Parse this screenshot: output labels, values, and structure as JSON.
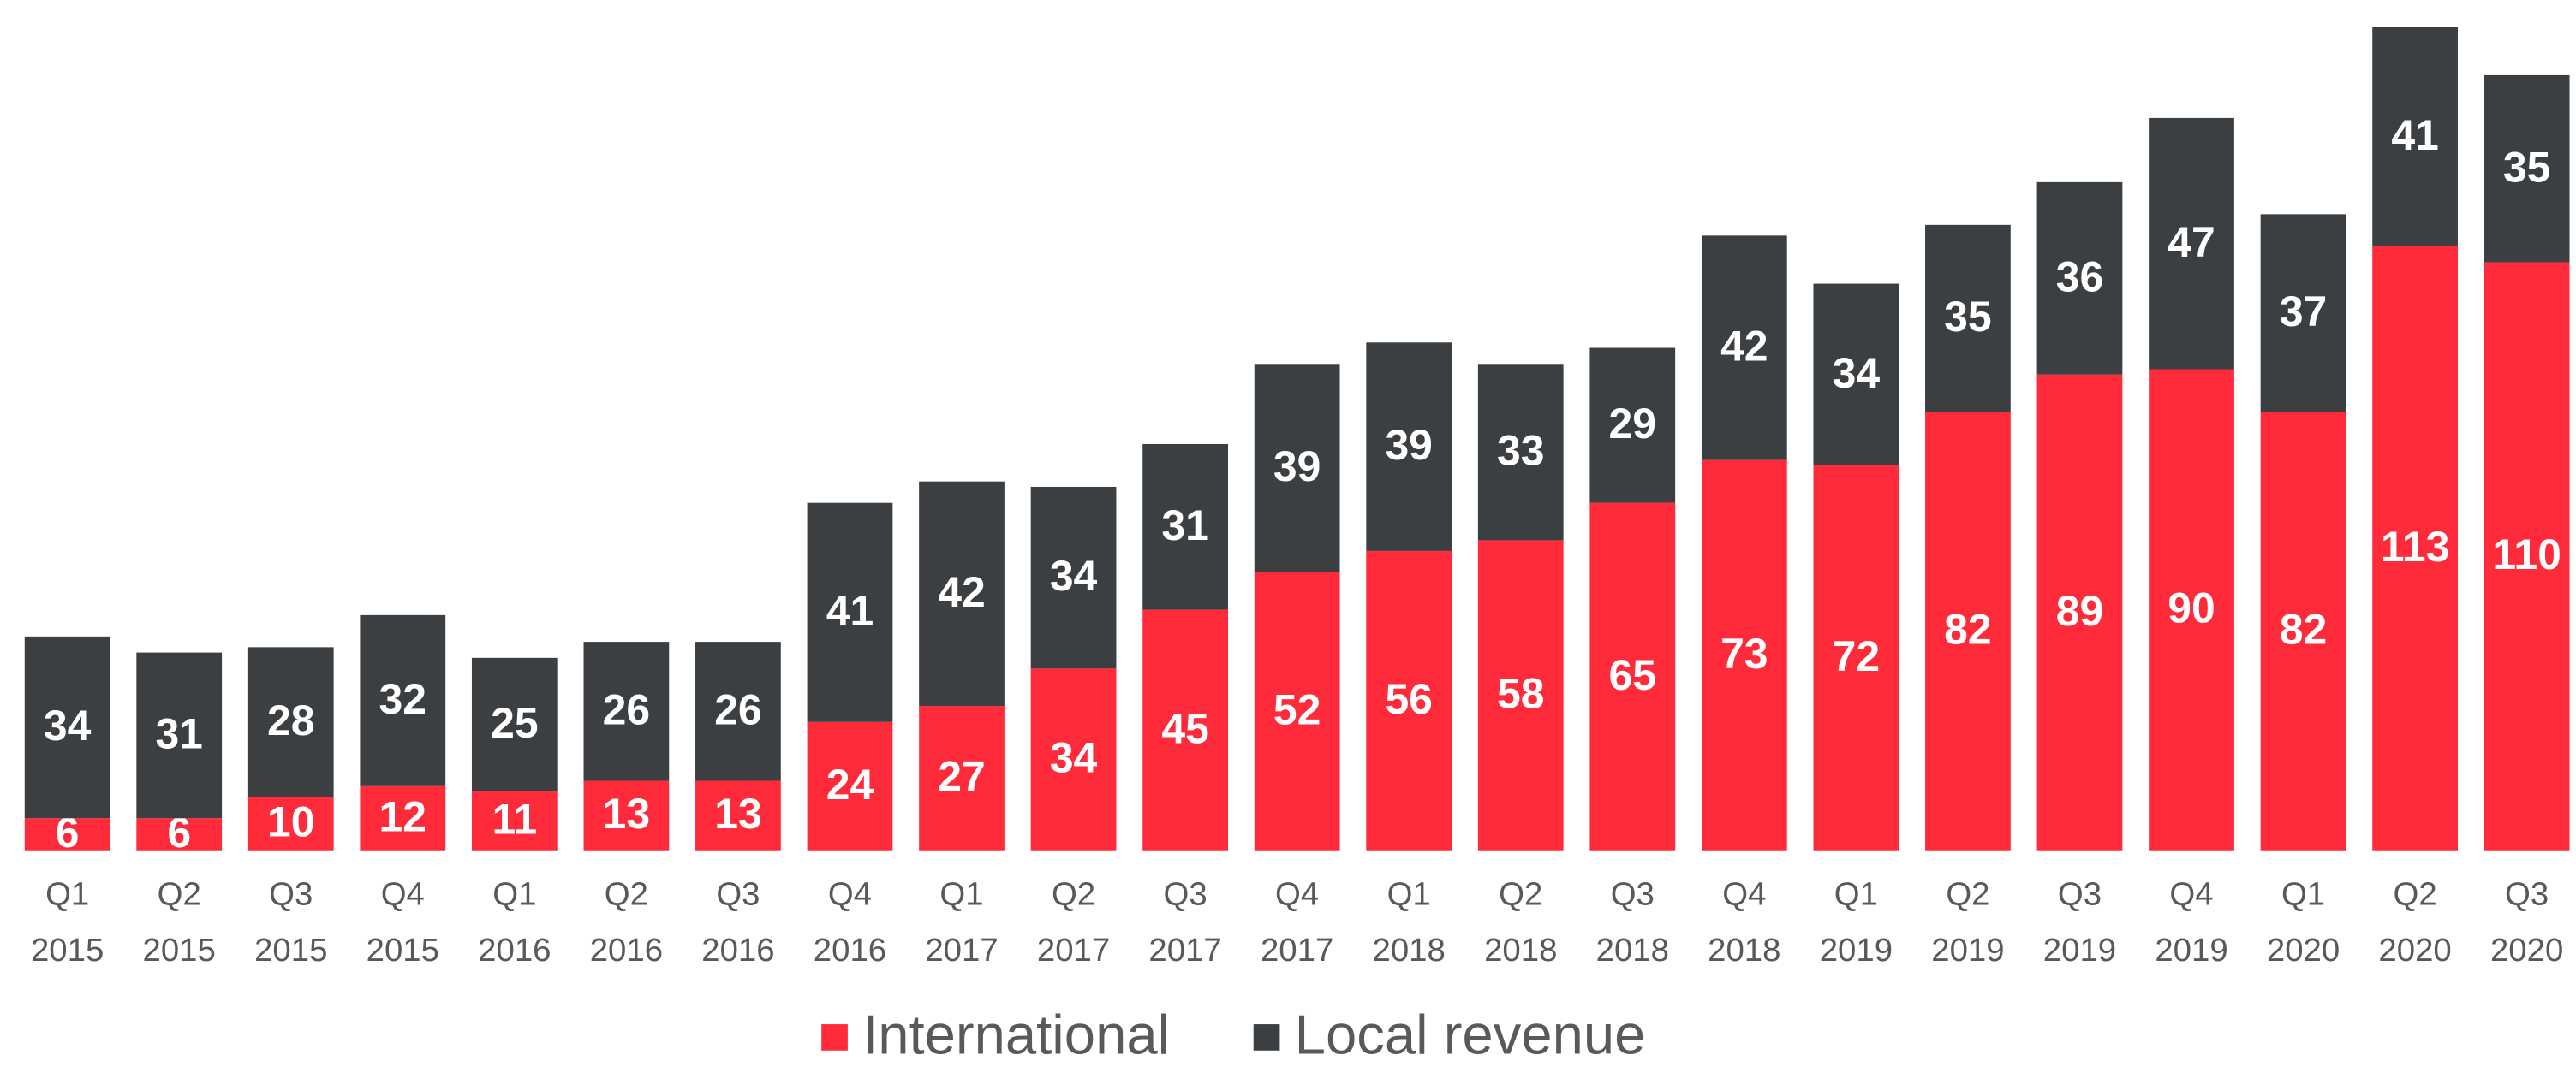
{
  "chart_data": {
    "type": "stacked-bar",
    "categories": [
      [
        "Q1",
        "2015"
      ],
      [
        "Q2",
        "2015"
      ],
      [
        "Q3",
        "2015"
      ],
      [
        "Q4",
        "2015"
      ],
      [
        "Q1",
        "2016"
      ],
      [
        "Q2",
        "2016"
      ],
      [
        "Q3",
        "2016"
      ],
      [
        "Q4",
        "2016"
      ],
      [
        "Q1",
        "2017"
      ],
      [
        "Q2",
        "2017"
      ],
      [
        "Q3",
        "2017"
      ],
      [
        "Q4",
        "2017"
      ],
      [
        "Q1",
        "2018"
      ],
      [
        "Q2",
        "2018"
      ],
      [
        "Q3",
        "2018"
      ],
      [
        "Q4",
        "2018"
      ],
      [
        "Q1",
        "2019"
      ],
      [
        "Q2",
        "2019"
      ],
      [
        "Q3",
        "2019"
      ],
      [
        "Q4",
        "2019"
      ],
      [
        "Q1",
        "2020"
      ],
      [
        "Q2",
        "2020"
      ],
      [
        "Q3",
        "2020"
      ]
    ],
    "series": [
      {
        "name": "International",
        "color": "#ff2a3a",
        "values": [
          6,
          6,
          10,
          12,
          11,
          13,
          13,
          24,
          27,
          34,
          45,
          52,
          56,
          58,
          65,
          73,
          72,
          82,
          89,
          90,
          82,
          113,
          110
        ]
      },
      {
        "name": "Local revenue",
        "color": "#3c3f41",
        "values": [
          34,
          31,
          28,
          32,
          25,
          26,
          26,
          41,
          42,
          34,
          31,
          39,
          39,
          33,
          29,
          42,
          34,
          35,
          36,
          47,
          37,
          41,
          35
        ]
      }
    ],
    "ylim": [
      0,
      156
    ]
  }
}
